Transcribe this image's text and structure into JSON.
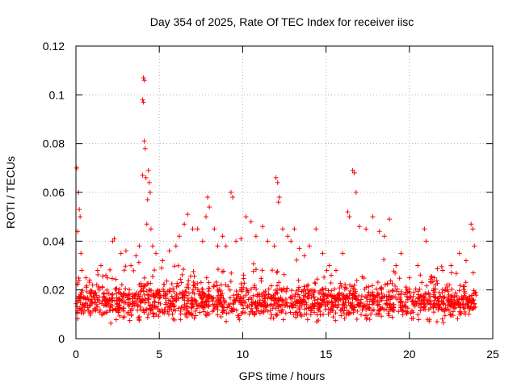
{
  "chart_data": {
    "type": "scatter",
    "title": "Day 354 of 2025, Rate Of TEC Index for receiver iisc",
    "xlabel": "GPS time / hours",
    "ylabel": "ROTI / TECUs",
    "xlim": [
      0,
      25
    ],
    "ylim": [
      0,
      0.12
    ],
    "x_ticks": [
      {
        "value": 0,
        "label": "0"
      },
      {
        "value": 5,
        "label": "5"
      },
      {
        "value": 10,
        "label": "10"
      },
      {
        "value": 15,
        "label": "15"
      },
      {
        "value": 20,
        "label": "20"
      },
      {
        "value": 25,
        "label": "25"
      }
    ],
    "y_ticks": [
      {
        "value": 0,
        "label": "0"
      },
      {
        "value": 0.02,
        "label": "0.02"
      },
      {
        "value": 0.04,
        "label": "0.04"
      },
      {
        "value": 0.06,
        "label": "0.06"
      },
      {
        "value": 0.08,
        "label": "0.08"
      },
      {
        "value": 0.1,
        "label": "0.1"
      },
      {
        "value": 0.12,
        "label": "0.12"
      }
    ],
    "grid": true,
    "legend": false,
    "marker": "plus",
    "color": "#ff0000",
    "points": [
      [
        0.05,
        0.07
      ],
      [
        0.1,
        0.044
      ],
      [
        0.15,
        0.06
      ],
      [
        0.2,
        0.053
      ],
      [
        0.25,
        0.05
      ],
      [
        0.3,
        0.035
      ],
      [
        0.35,
        0.028
      ],
      [
        0.6,
        0.025
      ],
      [
        1.0,
        0.022
      ],
      [
        1.3,
        0.028
      ],
      [
        1.5,
        0.03
      ],
      [
        1.8,
        0.026
      ],
      [
        2.2,
        0.04
      ],
      [
        2.3,
        0.041
      ],
      [
        2.7,
        0.035
      ],
      [
        3.0,
        0.036
      ],
      [
        3.3,
        0.03
      ],
      [
        3.6,
        0.034
      ],
      [
        3.8,
        0.038
      ],
      [
        4.05,
        0.107
      ],
      [
        4.1,
        0.106
      ],
      [
        4.0,
        0.098
      ],
      [
        4.05,
        0.097
      ],
      [
        4.1,
        0.081
      ],
      [
        4.15,
        0.078
      ],
      [
        4.0,
        0.067
      ],
      [
        4.2,
        0.066
      ],
      [
        4.35,
        0.069
      ],
      [
        4.4,
        0.064
      ],
      [
        4.45,
        0.06
      ],
      [
        4.3,
        0.057
      ],
      [
        4.25,
        0.047
      ],
      [
        4.5,
        0.045
      ],
      [
        4.6,
        0.038
      ],
      [
        4.8,
        0.035
      ],
      [
        5.2,
        0.032
      ],
      [
        5.6,
        0.036
      ],
      [
        6.0,
        0.038
      ],
      [
        6.2,
        0.042
      ],
      [
        6.5,
        0.047
      ],
      [
        6.7,
        0.051
      ],
      [
        7.0,
        0.045
      ],
      [
        7.3,
        0.045
      ],
      [
        7.6,
        0.04
      ],
      [
        7.8,
        0.05
      ],
      [
        7.9,
        0.058
      ],
      [
        8.0,
        0.054
      ],
      [
        8.3,
        0.045
      ],
      [
        8.5,
        0.038
      ],
      [
        8.8,
        0.042
      ],
      [
        9.0,
        0.038
      ],
      [
        9.3,
        0.06
      ],
      [
        9.4,
        0.058
      ],
      [
        9.6,
        0.04
      ],
      [
        9.9,
        0.041
      ],
      [
        10.2,
        0.05
      ],
      [
        10.5,
        0.048
      ],
      [
        10.8,
        0.042
      ],
      [
        11.2,
        0.046
      ],
      [
        11.5,
        0.04
      ],
      [
        11.9,
        0.038
      ],
      [
        12.0,
        0.066
      ],
      [
        12.1,
        0.064
      ],
      [
        12.2,
        0.058
      ],
      [
        12.15,
        0.056
      ],
      [
        12.4,
        0.045
      ],
      [
        12.7,
        0.042
      ],
      [
        12.9,
        0.04
      ],
      [
        13.1,
        0.045
      ],
      [
        13.4,
        0.037
      ],
      [
        13.7,
        0.034
      ],
      [
        14.0,
        0.038
      ],
      [
        14.4,
        0.045
      ],
      [
        14.8,
        0.035
      ],
      [
        15.2,
        0.03
      ],
      [
        15.6,
        0.028
      ],
      [
        16.0,
        0.035
      ],
      [
        16.3,
        0.052
      ],
      [
        16.4,
        0.05
      ],
      [
        16.6,
        0.069
      ],
      [
        16.7,
        0.068
      ],
      [
        16.8,
        0.06
      ],
      [
        17.0,
        0.046
      ],
      [
        17.4,
        0.045
      ],
      [
        17.8,
        0.05
      ],
      [
        18.2,
        0.044
      ],
      [
        18.5,
        0.042
      ],
      [
        18.8,
        0.049
      ],
      [
        19.2,
        0.03
      ],
      [
        19.5,
        0.035
      ],
      [
        20.0,
        0.025
      ],
      [
        20.5,
        0.03
      ],
      [
        20.9,
        0.045
      ],
      [
        21.0,
        0.04
      ],
      [
        21.5,
        0.025
      ],
      [
        22.0,
        0.028
      ],
      [
        22.5,
        0.03
      ],
      [
        23.0,
        0.035
      ],
      [
        23.4,
        0.032
      ],
      [
        23.7,
        0.047
      ],
      [
        23.8,
        0.045
      ],
      [
        23.9,
        0.038
      ]
    ],
    "dense_bands": [
      {
        "x_start": 0,
        "x_end": 24,
        "y_min": 0.005,
        "y_max": 0.025,
        "note": ""
      }
    ]
  }
}
